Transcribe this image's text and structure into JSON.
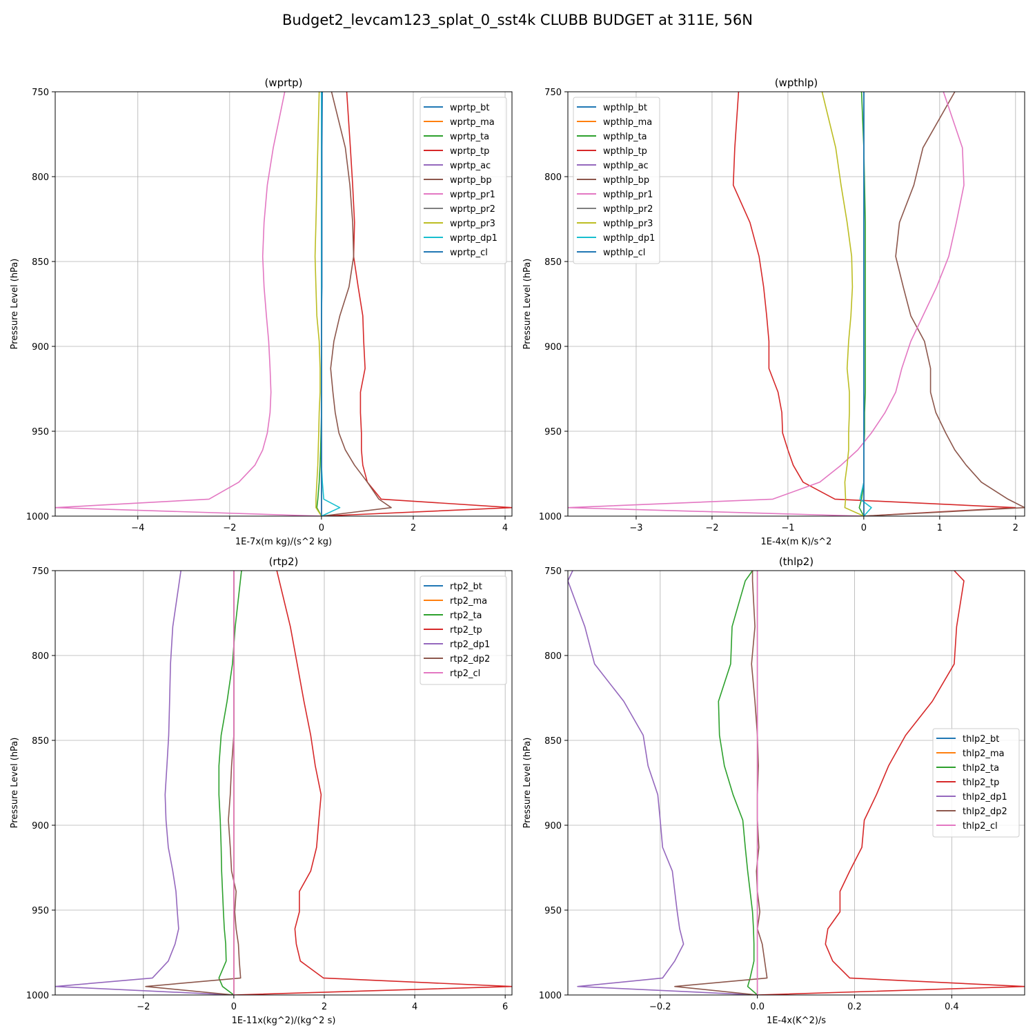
{
  "suptitle": "Budget2_levcam123_splat_0_sst4k CLUBB BUDGET at 311E, 56N",
  "colors": {
    "c0": "#1f77b4",
    "c1": "#ff7f0e",
    "c2": "#2ca02c",
    "c3": "#d62728",
    "c4": "#9467bd",
    "c5": "#8c564b",
    "c6": "#e377c2",
    "c7": "#7f7f7f",
    "c8": "#bcbd22",
    "c9": "#17becf",
    "grid": "#b0b0b0",
    "legend_edge": "#cccccc"
  },
  "chart_data": [
    {
      "type": "line",
      "title": "(wprtp)",
      "xlabel": "1E-7x(m kg)/(s^2 kg)",
      "ylabel": "Pressure Level (hPa)",
      "xlim": [
        -5.8,
        4.15
      ],
      "ylim": [
        1000,
        750
      ],
      "xticks": [
        -4,
        -2,
        0,
        2,
        4
      ],
      "xtick_labels": [
        "−4",
        "−2",
        "0",
        "2",
        "4"
      ],
      "yticks": [
        750,
        800,
        850,
        900,
        950,
        1000
      ],
      "ytick_labels": [
        "750",
        "800",
        "850",
        "900",
        "950",
        "1000"
      ],
      "grid": true,
      "legend_loc": "upper right",
      "levels": [
        750,
        783,
        805,
        827,
        847,
        865,
        882,
        897,
        913,
        927,
        939,
        951,
        961,
        970,
        980,
        990,
        995,
        1000
      ],
      "series": [
        {
          "name": "wprtp_bt",
          "color": "c0",
          "values": [
            0,
            0,
            0,
            0,
            0,
            0,
            0,
            0,
            0,
            0,
            0,
            0,
            0,
            0,
            0,
            0,
            0,
            0
          ]
        },
        {
          "name": "wprtp_ma",
          "color": "c1",
          "values": [
            0,
            0,
            0,
            0,
            0,
            0,
            0,
            0,
            0,
            0,
            0,
            0,
            0,
            0,
            0,
            0,
            0,
            0
          ]
        },
        {
          "name": "wprtp_ta",
          "color": "c2",
          "values": [
            0,
            0,
            0,
            0,
            0,
            0,
            0,
            0,
            0,
            0,
            0,
            -0.01,
            -0.02,
            -0.03,
            -0.05,
            -0.08,
            -0.1,
            0
          ]
        },
        {
          "name": "wprtp_tp",
          "color": "c3",
          "values": [
            0.55,
            0.63,
            0.68,
            0.72,
            0.7,
            0.8,
            0.9,
            0.92,
            0.95,
            0.85,
            0.85,
            0.87,
            0.87,
            0.9,
            1.0,
            1.3,
            4.15,
            0
          ]
        },
        {
          "name": "wprtp_ac",
          "color": "c4",
          "values": [
            0,
            0,
            0,
            0,
            0,
            0,
            0,
            0,
            0,
            0,
            0,
            0,
            0,
            0,
            0,
            0,
            0,
            0
          ]
        },
        {
          "name": "wprtp_bp",
          "color": "c5",
          "values": [
            0.22,
            0.52,
            0.62,
            0.68,
            0.7,
            0.6,
            0.4,
            0.27,
            0.2,
            0.25,
            0.3,
            0.38,
            0.52,
            0.72,
            1.0,
            1.25,
            1.52,
            0
          ]
        },
        {
          "name": "wprtp_pr1",
          "color": "c6",
          "values": [
            -0.8,
            -1.05,
            -1.18,
            -1.25,
            -1.28,
            -1.25,
            -1.2,
            -1.15,
            -1.12,
            -1.1,
            -1.12,
            -1.18,
            -1.28,
            -1.45,
            -1.8,
            -2.45,
            -5.8,
            0
          ]
        },
        {
          "name": "wprtp_pr2",
          "color": "c7",
          "values": [
            0,
            0,
            0,
            0,
            0,
            0,
            0,
            0,
            0,
            0,
            0,
            0,
            0,
            0,
            0,
            0,
            0,
            0
          ]
        },
        {
          "name": "wprtp_pr3",
          "color": "c8",
          "values": [
            -0.05,
            -0.08,
            -0.1,
            -0.12,
            -0.14,
            -0.12,
            -0.1,
            -0.05,
            -0.03,
            -0.03,
            -0.05,
            -0.06,
            -0.07,
            -0.08,
            -0.1,
            -0.12,
            -0.12,
            0
          ]
        },
        {
          "name": "wprtp_dp1",
          "color": "c9",
          "values": [
            0,
            0,
            0,
            0,
            0,
            0,
            0,
            0,
            0,
            0,
            0,
            0,
            0,
            0,
            0.02,
            0.05,
            0.4,
            0
          ]
        },
        {
          "name": "wprtp_cl",
          "color": "c0",
          "values": [
            0.02,
            0.01,
            0.01,
            0.01,
            0.01,
            0.01,
            0.0,
            0.0,
            0.0,
            0.0,
            0.0,
            0.0,
            0.0,
            0.0,
            0.0,
            0.0,
            0.0,
            0
          ]
        }
      ]
    },
    {
      "type": "line",
      "title": "(wpthlp)",
      "xlabel": "1E-4x(m K)/s^2",
      "ylabel": "Pressure Level (hPa)",
      "xlim": [
        -3.9,
        2.12
      ],
      "ylim": [
        1000,
        750
      ],
      "xticks": [
        -3,
        -2,
        -1,
        0,
        1,
        2
      ],
      "xtick_labels": [
        "−3",
        "−2",
        "−1",
        "0",
        "1",
        "2"
      ],
      "yticks": [
        750,
        800,
        850,
        900,
        950,
        1000
      ],
      "ytick_labels": [
        "750",
        "800",
        "850",
        "900",
        "950",
        "1000"
      ],
      "grid": true,
      "legend_loc": "upper left",
      "levels": [
        750,
        783,
        805,
        827,
        847,
        865,
        882,
        897,
        913,
        927,
        939,
        951,
        961,
        970,
        980,
        990,
        995,
        1000
      ],
      "series": [
        {
          "name": "wpthlp_bt",
          "color": "c0",
          "values": [
            0,
            0,
            0,
            0,
            0,
            0,
            0,
            0,
            0,
            0,
            0,
            0,
            0,
            0,
            0,
            0,
            0,
            0
          ]
        },
        {
          "name": "wpthlp_ma",
          "color": "c1",
          "values": [
            0,
            0,
            0,
            0,
            0,
            0,
            0,
            0,
            0,
            0,
            0,
            0,
            0,
            0,
            0,
            0,
            0,
            0
          ]
        },
        {
          "name": "wpthlp_ta",
          "color": "c2",
          "values": [
            -0.03,
            0.0,
            0.01,
            0.02,
            0.02,
            0.02,
            0.02,
            0.02,
            0.02,
            0.02,
            0.01,
            0.01,
            0.0,
            0.0,
            0.0,
            -0.03,
            -0.06,
            0
          ]
        },
        {
          "name": "wpthlp_tp",
          "color": "c3",
          "values": [
            -1.65,
            -1.7,
            -1.72,
            -1.5,
            -1.38,
            -1.32,
            -1.28,
            -1.25,
            -1.25,
            -1.13,
            -1.08,
            -1.07,
            -1.0,
            -0.93,
            -0.8,
            -0.38,
            2.0,
            0
          ]
        },
        {
          "name": "wpthlp_ac",
          "color": "c4",
          "values": [
            0,
            0,
            0,
            0,
            0,
            0,
            0,
            0,
            0,
            0,
            0,
            0,
            0,
            0,
            0,
            0,
            0,
            0
          ]
        },
        {
          "name": "wpthlp_bp",
          "color": "c5",
          "values": [
            1.2,
            0.78,
            0.66,
            0.47,
            0.42,
            0.52,
            0.62,
            0.8,
            0.88,
            0.88,
            0.95,
            1.08,
            1.2,
            1.35,
            1.55,
            1.9,
            2.12,
            0
          ]
        },
        {
          "name": "wpthlp_pr1",
          "color": "c6",
          "values": [
            1.05,
            1.3,
            1.32,
            1.22,
            1.12,
            0.96,
            0.78,
            0.62,
            0.5,
            0.42,
            0.28,
            0.1,
            -0.08,
            -0.3,
            -0.58,
            -1.2,
            -3.9,
            0
          ]
        },
        {
          "name": "wpthlp_pr2",
          "color": "c7",
          "values": [
            0,
            0,
            0,
            0,
            0,
            0,
            0,
            0,
            0,
            0,
            0,
            0,
            0,
            0,
            0,
            0,
            0,
            0
          ]
        },
        {
          "name": "wpthlp_pr3",
          "color": "c8",
          "values": [
            -0.55,
            -0.37,
            -0.3,
            -0.22,
            -0.16,
            -0.15,
            -0.17,
            -0.2,
            -0.22,
            -0.19,
            -0.19,
            -0.2,
            -0.2,
            -0.22,
            -0.25,
            -0.24,
            -0.25,
            0
          ]
        },
        {
          "name": "wpthlp_dp1",
          "color": "c9",
          "values": [
            0,
            0,
            0,
            0,
            0,
            0,
            0,
            0,
            0,
            0,
            0,
            0,
            0,
            0,
            0,
            -0.05,
            0.1,
            0
          ]
        },
        {
          "name": "wpthlp_cl",
          "color": "c0",
          "values": [
            0,
            0,
            0,
            0,
            0,
            0,
            0,
            0,
            0,
            0,
            0,
            0,
            0,
            0,
            0,
            0,
            0,
            0
          ]
        }
      ]
    },
    {
      "type": "line",
      "title": "(rtp2)",
      "xlabel": "1E-11x(kg^2)/(kg^2 s)",
      "ylabel": "Pressure Level (hPa)",
      "xlim": [
        -3.95,
        6.15
      ],
      "ylim": [
        1000,
        750
      ],
      "xticks": [
        -2,
        0,
        2,
        4,
        6
      ],
      "xtick_labels": [
        "−2",
        "0",
        "2",
        "4",
        "6"
      ],
      "yticks": [
        750,
        800,
        850,
        900,
        950,
        1000
      ],
      "ytick_labels": [
        "750",
        "800",
        "850",
        "900",
        "950",
        "1000"
      ],
      "grid": true,
      "legend_loc": "upper right",
      "levels": [
        750,
        783,
        805,
        827,
        847,
        865,
        882,
        897,
        913,
        927,
        939,
        951,
        961,
        970,
        980,
        990,
        995,
        1000
      ],
      "series": [
        {
          "name": "rtp2_bt",
          "color": "c0",
          "values": [
            0,
            0,
            0,
            0,
            0,
            0,
            0,
            0,
            0,
            0,
            0,
            0,
            0,
            0,
            0,
            0,
            0,
            0
          ]
        },
        {
          "name": "rtp2_ma",
          "color": "c1",
          "values": [
            0,
            0,
            0,
            0,
            0,
            0,
            0,
            0,
            0,
            0,
            0,
            0,
            0,
            0,
            0,
            0,
            0,
            0
          ]
        },
        {
          "name": "rtp2_ta",
          "color": "c2",
          "values": [
            0.17,
            0.03,
            -0.03,
            -0.15,
            -0.28,
            -0.33,
            -0.33,
            -0.3,
            -0.28,
            -0.27,
            -0.25,
            -0.23,
            -0.21,
            -0.18,
            -0.17,
            -0.33,
            -0.25,
            0
          ]
        },
        {
          "name": "rtp2_tp",
          "color": "c3",
          "values": [
            0.95,
            1.25,
            1.4,
            1.55,
            1.7,
            1.8,
            1.93,
            1.88,
            1.83,
            1.7,
            1.45,
            1.45,
            1.35,
            1.38,
            1.47,
            1.98,
            6.15,
            0
          ]
        },
        {
          "name": "rtp2_dp1",
          "color": "c4",
          "values": [
            -1.17,
            -1.35,
            -1.4,
            -1.42,
            -1.44,
            -1.48,
            -1.52,
            -1.5,
            -1.45,
            -1.35,
            -1.28,
            -1.25,
            -1.22,
            -1.3,
            -1.45,
            -1.8,
            -3.95,
            0
          ]
        },
        {
          "name": "rtp2_dp2",
          "color": "c5",
          "values": [
            0,
            0,
            0,
            0,
            0,
            -0.05,
            -0.08,
            -0.12,
            -0.08,
            -0.05,
            0.05,
            0.02,
            0.05,
            0.1,
            0.12,
            0.15,
            -1.95,
            0
          ]
        },
        {
          "name": "rtp2_cl",
          "color": "c6",
          "values": [
            0,
            0,
            0,
            0,
            0,
            0,
            0,
            0,
            0,
            0,
            0,
            0,
            0,
            0,
            0,
            0,
            0,
            0
          ]
        }
      ]
    },
    {
      "type": "line",
      "title": "(thlp2)",
      "xlabel": "1E-4x(K^2)/s",
      "ylabel": "Pressure Level (hPa)",
      "xlim": [
        -0.39,
        0.55
      ],
      "ylim": [
        1000,
        750
      ],
      "xticks": [
        -0.2,
        0.0,
        0.2,
        0.4
      ],
      "xtick_labels": [
        "−0.2",
        "0.0",
        "0.2",
        "0.4"
      ],
      "yticks": [
        750,
        800,
        850,
        900,
        950,
        1000
      ],
      "ytick_labels": [
        "750",
        "800",
        "850",
        "900",
        "950",
        "1000"
      ],
      "grid": true,
      "legend_loc": "center right",
      "levels": [
        750,
        756,
        783,
        805,
        827,
        847,
        865,
        882,
        897,
        913,
        927,
        939,
        951,
        961,
        970,
        980,
        990,
        995,
        1000
      ],
      "series": [
        {
          "name": "thlp2_bt",
          "color": "c0",
          "values": [
            0,
            0,
            0,
            0,
            0,
            0,
            0,
            0,
            0,
            0,
            0,
            0,
            0,
            0,
            0,
            0,
            0,
            0,
            0
          ]
        },
        {
          "name": "thlp2_ma",
          "color": "c1",
          "values": [
            0,
            0,
            0,
            0,
            0,
            0,
            0,
            0,
            0,
            0,
            0,
            0,
            0,
            0,
            0,
            0,
            0,
            0,
            0
          ]
        },
        {
          "name": "thlp2_ta",
          "color": "c2",
          "values": [
            -0.01,
            -0.025,
            -0.052,
            -0.055,
            -0.08,
            -0.078,
            -0.068,
            -0.05,
            -0.03,
            -0.025,
            -0.02,
            -0.015,
            -0.01,
            -0.008,
            -0.007,
            -0.007,
            -0.015,
            -0.02,
            0
          ]
        },
        {
          "name": "thlp2_tp",
          "color": "c3",
          "values": [
            0.405,
            0.425,
            0.41,
            0.405,
            0.36,
            0.305,
            0.27,
            0.245,
            0.22,
            0.215,
            0.19,
            0.17,
            0.17,
            0.145,
            0.14,
            0.155,
            0.19,
            0.55,
            0
          ]
        },
        {
          "name": "thlp2_dp1",
          "color": "c4",
          "values": [
            -0.38,
            -0.39,
            -0.355,
            -0.335,
            -0.275,
            -0.235,
            -0.225,
            -0.205,
            -0.2,
            -0.195,
            -0.175,
            -0.17,
            -0.165,
            -0.16,
            -0.152,
            -0.17,
            -0.195,
            -0.37,
            0
          ]
        },
        {
          "name": "thlp2_dp2",
          "color": "c5",
          "values": [
            -0.01,
            -0.01,
            -0.005,
            -0.012,
            -0.005,
            0.0,
            0.002,
            0.0,
            0.0,
            0.003,
            -0.002,
            0.0,
            0.005,
            0.0,
            0.01,
            0.015,
            0.02,
            -0.17,
            0
          ]
        },
        {
          "name": "thlp2_cl",
          "color": "c6",
          "values": [
            0,
            0,
            0,
            0,
            0,
            0,
            0,
            0,
            0,
            0,
            0,
            0,
            0,
            0,
            0,
            0,
            0,
            0,
            0
          ]
        }
      ]
    }
  ]
}
